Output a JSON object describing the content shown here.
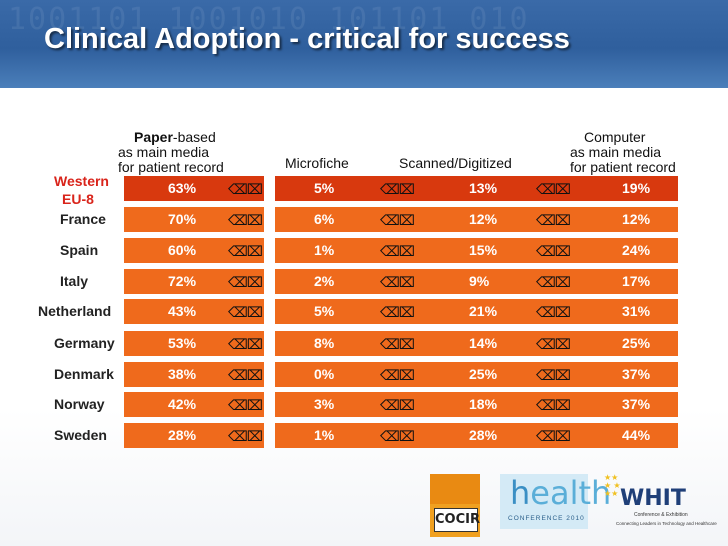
{
  "slide": {
    "title": "Clinical Adoption - critical for success",
    "background_text": "1001101 1001010 101101 010"
  },
  "columns": [
    {
      "bold": "Paper",
      "line1_rest": "-based",
      "line2": "as main media",
      "line3": "for patient record"
    },
    {
      "line1": "Microfiche"
    },
    {
      "line1": "Scanned/Digitized"
    },
    {
      "line1": "Computer",
      "line2": "as main media",
      "line3": "for patient record"
    }
  ],
  "connector_glyph": "⌫⌧",
  "rows": [
    {
      "country_line1": "Western",
      "country_line2": "EU-8",
      "values": [
        "63%",
        "5%",
        "13%",
        "19%"
      ]
    },
    {
      "country": "France",
      "values": [
        "70%",
        "6%",
        "12%",
        "12%"
      ]
    },
    {
      "country": "Spain",
      "values": [
        "60%",
        "1%",
        "15%",
        "24%"
      ]
    },
    {
      "country": "Italy",
      "values": [
        "72%",
        "2%",
        "9%",
        "17%"
      ]
    },
    {
      "country": "Netherland",
      "values": [
        "43%",
        "5%",
        "21%",
        "31%"
      ]
    },
    {
      "country": "Germany",
      "values": [
        "53%",
        "8%",
        "14%",
        "25%"
      ]
    },
    {
      "country": "Denmark",
      "values": [
        "38%",
        "0%",
        "25%",
        "37%"
      ]
    },
    {
      "country": "Norway",
      "values": [
        "42%",
        "3%",
        "18%",
        "37%"
      ]
    },
    {
      "country": "Sweden",
      "values": [
        "28%",
        "1%",
        "28%",
        "44%"
      ]
    }
  ],
  "logos": {
    "cocir": "COCIR",
    "health_h": "h",
    "health_rest": "ealth",
    "health_sub": "CONFERENCE 2010",
    "whit_name": "WHIT",
    "whit_sub1": "Conference & Exhibition",
    "whit_sub2": "Connecting Leaders in Technology and Healthcare"
  },
  "colors": {
    "bar_orange": "#ef6a1c",
    "bar_highlight": "#d8390e",
    "highlight_text": "#d9241b",
    "header_blue": "#2f5f9d"
  }
}
